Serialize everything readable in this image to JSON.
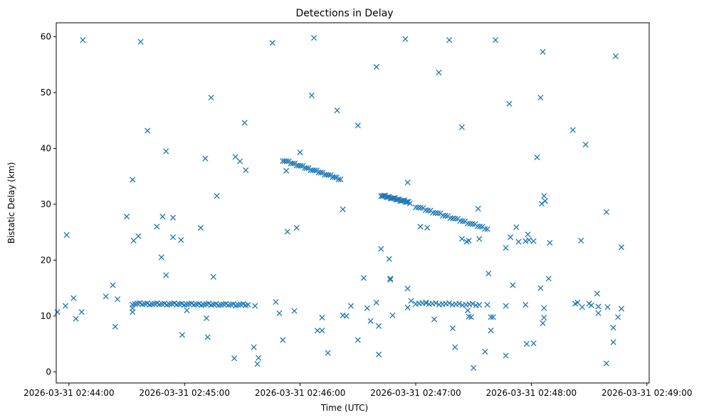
{
  "chart_data": {
    "type": "scatter",
    "title": "Detections in Delay",
    "xlabel": "Time (UTC)",
    "ylabel": "Bistatic Delay (km)",
    "x_unit": "minutes since 2026-03-31 02:44:00",
    "xlim": [
      -0.11,
      5.02
    ],
    "ylim": [
      -2,
      62.5
    ],
    "xticks": [
      {
        "value": 0,
        "label": "2026-03-31 02:44:00"
      },
      {
        "value": 1,
        "label": "2026-03-31 02:45:00"
      },
      {
        "value": 2,
        "label": "2026-03-31 02:46:00"
      },
      {
        "value": 3,
        "label": "2026-03-31 02:47:00"
      },
      {
        "value": 4,
        "label": "2026-03-31 02:48:00"
      },
      {
        "value": 5,
        "label": "2026-03-31 02:49:00"
      }
    ],
    "yticks": [
      {
        "value": 0,
        "label": "0"
      },
      {
        "value": 10,
        "label": "10"
      },
      {
        "value": 20,
        "label": "20"
      },
      {
        "value": 30,
        "label": "30"
      },
      {
        "value": 40,
        "label": "40"
      },
      {
        "value": 50,
        "label": "50"
      },
      {
        "value": 60,
        "label": "60"
      }
    ],
    "marker": "x",
    "color": "#1f77b4",
    "tracks": [
      {
        "name": "track-near-12km-a",
        "x_start": 0.55,
        "x_end": 1.55,
        "y_start": 12.2,
        "y_end": 12.0,
        "count": 48
      },
      {
        "name": "track-near-12km-b",
        "x_start": 3.0,
        "x_end": 3.55,
        "y_start": 12.3,
        "y_end": 12.0,
        "count": 20
      },
      {
        "name": "track-37km",
        "x_start": 1.85,
        "x_end": 2.35,
        "y_start": 37.9,
        "y_end": 34.5,
        "count": 30
      },
      {
        "name": "track-31km",
        "x_start": 2.7,
        "x_end": 2.95,
        "y_start": 31.6,
        "y_end": 30.3,
        "count": 22
      },
      {
        "name": "track-28km",
        "x_start": 3.0,
        "x_end": 3.62,
        "y_start": 29.6,
        "y_end": 25.6,
        "count": 30
      }
    ],
    "points": [
      [
        -0.1,
        10.7
      ],
      [
        -0.03,
        11.8
      ],
      [
        0.04,
        13.2
      ],
      [
        0.06,
        9.5
      ],
      [
        0.11,
        10.7
      ],
      [
        0.12,
        59.4
      ],
      [
        -0.02,
        24.5
      ],
      [
        0.32,
        13.5
      ],
      [
        0.38,
        15.5
      ],
      [
        0.42,
        13.0
      ],
      [
        0.4,
        8.1
      ],
      [
        0.5,
        27.8
      ],
      [
        0.55,
        34.4
      ],
      [
        0.56,
        23.5
      ],
      [
        0.6,
        24.3
      ],
      [
        0.62,
        59.1
      ],
      [
        0.55,
        10.7
      ],
      [
        0.55,
        11.4
      ],
      [
        0.68,
        43.2
      ],
      [
        0.76,
        26.0
      ],
      [
        0.81,
        27.8
      ],
      [
        0.8,
        20.5
      ],
      [
        0.84,
        39.5
      ],
      [
        0.84,
        17.3
      ],
      [
        0.9,
        27.6
      ],
      [
        0.9,
        24.1
      ],
      [
        0.97,
        23.6
      ],
      [
        0.98,
        6.6
      ],
      [
        1.02,
        11.0
      ],
      [
        1.14,
        25.8
      ],
      [
        1.19,
        9.6
      ],
      [
        1.2,
        6.2
      ],
      [
        1.18,
        38.2
      ],
      [
        1.23,
        49.1
      ],
      [
        1.25,
        17.0
      ],
      [
        1.28,
        31.5
      ],
      [
        1.43,
        2.4
      ],
      [
        1.44,
        38.5
      ],
      [
        1.48,
        37.7
      ],
      [
        1.52,
        44.6
      ],
      [
        1.53,
        36.1
      ],
      [
        1.6,
        4.4
      ],
      [
        1.64,
        2.5
      ],
      [
        1.63,
        1.4
      ],
      [
        1.61,
        11.8
      ],
      [
        1.76,
        58.9
      ],
      [
        1.79,
        12.5
      ],
      [
        1.82,
        10.5
      ],
      [
        1.85,
        5.7
      ],
      [
        1.88,
        36.0
      ],
      [
        1.89,
        25.1
      ],
      [
        1.95,
        10.9
      ],
      [
        1.97,
        25.8
      ],
      [
        2.0,
        39.3
      ],
      [
        2.1,
        49.5
      ],
      [
        2.12,
        59.8
      ],
      [
        2.15,
        7.4
      ],
      [
        2.19,
        7.4
      ],
      [
        2.19,
        9.7
      ],
      [
        2.24,
        3.4
      ],
      [
        2.32,
        46.8
      ],
      [
        2.37,
        10.1
      ],
      [
        2.37,
        29.1
      ],
      [
        2.4,
        10.0
      ],
      [
        2.44,
        11.8
      ],
      [
        2.5,
        5.7
      ],
      [
        2.5,
        44.1
      ],
      [
        2.55,
        16.8
      ],
      [
        2.58,
        11.4
      ],
      [
        2.61,
        9.1
      ],
      [
        2.66,
        12.4
      ],
      [
        2.66,
        54.6
      ],
      [
        2.68,
        3.1
      ],
      [
        2.68,
        8.2
      ],
      [
        2.7,
        22.0
      ],
      [
        2.77,
        20.2
      ],
      [
        2.78,
        16.7
      ],
      [
        2.78,
        16.5
      ],
      [
        2.8,
        10.1
      ],
      [
        2.91,
        59.6
      ],
      [
        2.93,
        33.9
      ],
      [
        2.93,
        14.9
      ],
      [
        2.93,
        11.5
      ],
      [
        2.96,
        12.7
      ],
      [
        3.04,
        26.0
      ],
      [
        3.1,
        25.8
      ],
      [
        3.09,
        12.3
      ],
      [
        3.16,
        9.4
      ],
      [
        3.2,
        53.6
      ],
      [
        3.29,
        59.4
      ],
      [
        3.32,
        7.8
      ],
      [
        3.34,
        4.4
      ],
      [
        3.4,
        43.8
      ],
      [
        3.4,
        23.8
      ],
      [
        3.44,
        23.3
      ],
      [
        3.46,
        23.5
      ],
      [
        3.45,
        11.0
      ],
      [
        3.46,
        9.9
      ],
      [
        3.48,
        9.8
      ],
      [
        3.5,
        0.7
      ],
      [
        3.54,
        29.2
      ],
      [
        3.55,
        23.8
      ],
      [
        3.6,
        3.6
      ],
      [
        3.62,
        12.0
      ],
      [
        3.63,
        17.6
      ],
      [
        3.65,
        9.8
      ],
      [
        3.65,
        7.4
      ],
      [
        3.67,
        9.8
      ],
      [
        3.69,
        59.4
      ],
      [
        3.78,
        22.2
      ],
      [
        3.78,
        11.8
      ],
      [
        3.78,
        2.9
      ],
      [
        3.81,
        48.0
      ],
      [
        3.82,
        24.1
      ],
      [
        3.84,
        15.5
      ],
      [
        3.87,
        25.9
      ],
      [
        3.89,
        23.3
      ],
      [
        3.95,
        23.4
      ],
      [
        3.95,
        12.0
      ],
      [
        3.97,
        24.6
      ],
      [
        3.98,
        23.6
      ],
      [
        3.96,
        5.0
      ],
      [
        4.02,
        23.4
      ],
      [
        4.02,
        5.1
      ],
      [
        4.05,
        38.4
      ],
      [
        4.08,
        49.1
      ],
      [
        4.08,
        15.0
      ],
      [
        4.1,
        57.3
      ],
      [
        4.09,
        30.1
      ],
      [
        4.11,
        31.5
      ],
      [
        4.12,
        30.6
      ],
      [
        4.1,
        8.7
      ],
      [
        4.11,
        9.7
      ],
      [
        4.11,
        11.4
      ],
      [
        4.16,
        23.1
      ],
      [
        4.15,
        16.7
      ],
      [
        4.36,
        43.3
      ],
      [
        4.38,
        12.2
      ],
      [
        4.4,
        12.4
      ],
      [
        4.43,
        23.5
      ],
      [
        4.44,
        11.6
      ],
      [
        4.47,
        40.7
      ],
      [
        4.5,
        12.2
      ],
      [
        4.52,
        11.9
      ],
      [
        4.57,
        14.0
      ],
      [
        4.58,
        11.7
      ],
      [
        4.58,
        10.5
      ],
      [
        4.65,
        28.6
      ],
      [
        4.65,
        1.5
      ],
      [
        4.66,
        11.6
      ],
      [
        4.71,
        7.9
      ],
      [
        4.71,
        5.3
      ],
      [
        4.73,
        56.5
      ],
      [
        4.75,
        9.8
      ],
      [
        4.78,
        22.3
      ],
      [
        4.78,
        11.3
      ]
    ]
  }
}
